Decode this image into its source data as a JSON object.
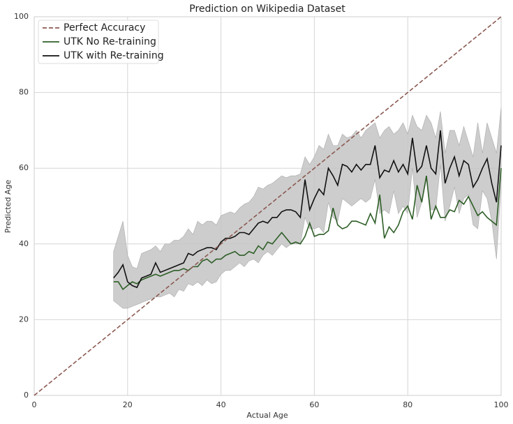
{
  "chart_data": {
    "type": "line",
    "title": "Prediction on Wikipedia Dataset",
    "x_label": "Actual Age",
    "y_label": "Predicted Age",
    "xlim": [
      0,
      100
    ],
    "ylim": [
      0,
      100
    ],
    "xticks": [
      0,
      20,
      40,
      60,
      80,
      100
    ],
    "yticks": [
      0,
      20,
      40,
      60,
      80,
      100
    ],
    "grid": true,
    "legend": "upper left",
    "x": [
      17,
      18,
      19,
      20,
      21,
      22,
      23,
      24,
      25,
      26,
      27,
      28,
      29,
      30,
      31,
      32,
      33,
      34,
      35,
      36,
      37,
      38,
      39,
      40,
      41,
      42,
      43,
      44,
      45,
      46,
      47,
      48,
      49,
      50,
      51,
      52,
      53,
      54,
      55,
      56,
      57,
      58,
      59,
      60,
      61,
      62,
      63,
      64,
      65,
      66,
      67,
      68,
      69,
      70,
      71,
      72,
      73,
      74,
      75,
      76,
      77,
      78,
      79,
      80,
      81,
      82,
      83,
      84,
      85,
      86,
      87,
      88,
      89,
      90,
      91,
      92,
      93,
      94,
      95,
      96,
      97,
      98,
      99,
      100
    ],
    "band": {
      "color": "#c4c4c4",
      "upper": [
        38,
        42,
        46,
        37,
        34,
        33.5,
        37.5,
        38,
        38.5,
        39.5,
        38,
        40,
        40,
        41,
        41,
        42,
        44,
        42.5,
        46,
        45,
        46,
        46,
        45,
        47.5,
        48,
        48.5,
        48,
        49.5,
        50.5,
        51,
        52.5,
        55,
        54.5,
        55.5,
        56,
        57,
        58,
        57.5,
        58,
        58,
        58.5,
        63,
        61,
        63,
        66,
        65,
        69,
        66,
        66,
        69,
        68,
        68.5,
        70,
        68,
        70,
        71,
        72,
        68,
        70,
        71,
        69,
        70,
        72,
        69,
        74,
        71,
        70,
        74,
        72,
        68,
        75,
        64,
        70,
        70,
        66,
        71,
        67,
        63,
        72,
        64,
        72,
        68,
        64,
        76
      ],
      "lower": [
        25,
        24,
        23,
        23,
        23.5,
        24,
        24.5,
        25,
        25.5,
        26,
        26,
        26.5,
        27,
        26,
        28,
        27.5,
        29.5,
        29,
        30,
        29,
        30.5,
        29.5,
        30,
        32,
        33,
        33,
        34,
        35,
        34,
        35.5,
        36,
        35,
        37,
        38,
        37,
        38.5,
        40,
        39,
        40,
        40,
        40,
        47,
        44,
        44,
        44.5,
        43,
        51,
        47,
        46,
        52,
        51,
        50,
        51,
        52,
        51,
        52,
        57,
        48,
        49,
        48,
        54,
        48,
        50,
        48,
        60,
        47,
        51,
        57,
        49,
        49,
        61,
        46,
        50,
        55,
        48,
        52,
        53,
        45,
        44,
        54,
        52,
        46,
        36,
        56
      ]
    },
    "perfect": {
      "name": "Perfect Accuracy",
      "color": "#8b5a52",
      "x": [
        0,
        100
      ],
      "values": [
        0,
        100
      ]
    },
    "series": [
      {
        "name": "UTK No Re-training",
        "color": "#2e5e27",
        "values": [
          30,
          30,
          28,
          29,
          30,
          29.5,
          30.5,
          31,
          31.5,
          32,
          31.5,
          32,
          32.5,
          33,
          33,
          33.5,
          33,
          34,
          34,
          35.5,
          36,
          35,
          36,
          36,
          37,
          37.5,
          38,
          37,
          37,
          38,
          37.5,
          39.5,
          38.5,
          40.5,
          40,
          41.5,
          43,
          41.5,
          40,
          40.5,
          40,
          42,
          45.5,
          42,
          42.5,
          42.5,
          43.5,
          49.5,
          45,
          44,
          44.5,
          46,
          46,
          45.5,
          45,
          48,
          45.5,
          53,
          41.5,
          44.5,
          43,
          45,
          48.5,
          50,
          46.5,
          55.5,
          51,
          58,
          46.5,
          50,
          47,
          47,
          49,
          48.5,
          51.5,
          50.5,
          52.5,
          50,
          47.5,
          48.5,
          47,
          46,
          45,
          60
        ]
      },
      {
        "name": "UTK with Re-training",
        "color": "#111111",
        "values": [
          31,
          32.5,
          34.5,
          30,
          29,
          28.5,
          31,
          31.5,
          32,
          35,
          32.5,
          33,
          33.5,
          34,
          34.5,
          35,
          37.5,
          37,
          38,
          38.5,
          39,
          39,
          38.5,
          40.5,
          41.5,
          41.5,
          42,
          43,
          43,
          42.5,
          44,
          45.5,
          46,
          45.5,
          47,
          47,
          48.5,
          49,
          49,
          48.5,
          47,
          57,
          49,
          52,
          54.5,
          53,
          60,
          58,
          55.5,
          61,
          60.5,
          59,
          61,
          59.5,
          61,
          61,
          66,
          57.5,
          59.5,
          59,
          62,
          59,
          61,
          58.5,
          68,
          59,
          60.5,
          66,
          60,
          58.5,
          70,
          56,
          60,
          63,
          58,
          62,
          61,
          55,
          57,
          60,
          62.5,
          56,
          51,
          66
        ]
      }
    ]
  }
}
